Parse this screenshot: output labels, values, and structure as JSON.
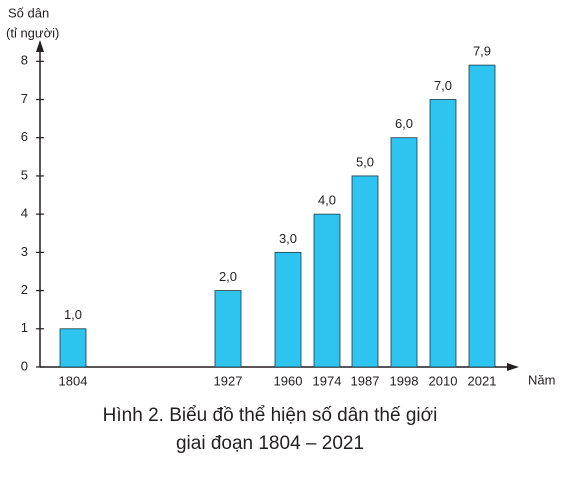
{
  "chart_data": {
    "type": "bar",
    "title": [
      "Hình 2. Biểu đồ thể hiện số dân thế giới",
      "giai đoạn 1804 – 2021"
    ],
    "y_label": [
      "Số dân",
      "(tỉ người)"
    ],
    "x_label": "Năm",
    "categories": [
      "1804",
      "1927",
      "1960",
      "1974",
      "1987",
      "1998",
      "2010",
      "2021"
    ],
    "values": [
      1.0,
      2.0,
      3.0,
      4.0,
      5.0,
      6.0,
      7.0,
      7.9
    ],
    "value_labels": [
      "1,0",
      "2,0",
      "3,0",
      "4,0",
      "5,0",
      "6,0",
      "7,0",
      "7,9"
    ],
    "color": "#2ec4f0",
    "ylim": [
      0,
      8.4
    ],
    "yticks": [
      0,
      1,
      2,
      3,
      4,
      5,
      6,
      7,
      8
    ]
  }
}
